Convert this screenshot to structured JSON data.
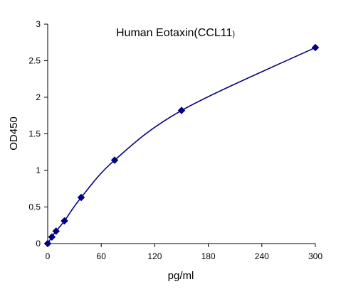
{
  "chart_data": {
    "type": "scatter",
    "title": "Human  Eotaxin(CCL11",
    "title_suffix": ")",
    "xlabel": "pg/ml",
    "ylabel": "OD450",
    "xlim": [
      0,
      300
    ],
    "ylim": [
      0,
      3
    ],
    "xticks": [
      0,
      60,
      120,
      180,
      240,
      300
    ],
    "yticks": [
      0,
      0.5,
      1,
      1.5,
      2,
      2.5,
      3
    ],
    "xtick_labels": [
      "0",
      "60",
      "120",
      "180",
      "240",
      "300"
    ],
    "ytick_labels": [
      "0",
      "0.5",
      "1",
      "1.5",
      "2",
      "2.5",
      "3"
    ],
    "grid": false,
    "legend": false,
    "series": [
      {
        "x": [
          0,
          4.69,
          9.38,
          18.75,
          37.5,
          75,
          150,
          300
        ],
        "y": [
          0.0,
          0.09,
          0.17,
          0.31,
          0.63,
          1.14,
          1.82,
          2.68
        ]
      }
    ],
    "line_color": "#00007f",
    "marker_color": "#00007f",
    "marker": "diamond",
    "fit": "smooth-curve"
  }
}
